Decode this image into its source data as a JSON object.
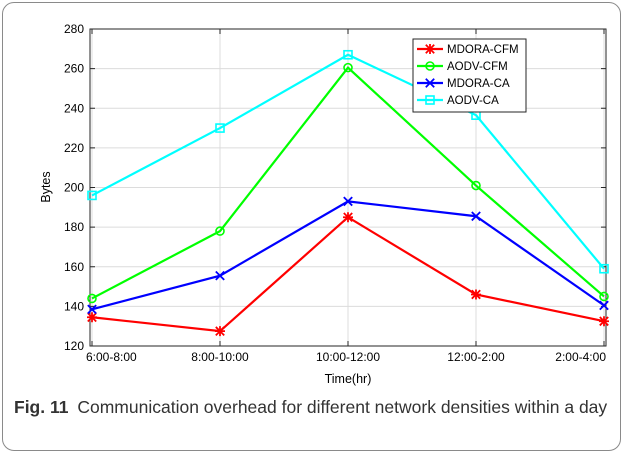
{
  "chart_data": {
    "type": "line",
    "categories": [
      "6:00-8:00",
      "8:00-10:00",
      "10:00-12:00",
      "12:00-2:00",
      "2:00-4:00"
    ],
    "series": [
      {
        "name": "MDORA-CFM",
        "color": "#ff0000",
        "marker": "asterisk",
        "values": [
          134.5,
          127.5,
          185,
          146,
          132.5
        ]
      },
      {
        "name": "AODV-CFM",
        "color": "#00ff00",
        "marker": "circle",
        "values": [
          144,
          178,
          260.5,
          201,
          145
        ]
      },
      {
        "name": "MDORA-CA",
        "color": "#0000ff",
        "marker": "x",
        "values": [
          138.5,
          155.5,
          193,
          185.5,
          140.5
        ]
      },
      {
        "name": "AODV-CA",
        "color": "#00ffff",
        "marker": "square",
        "values": [
          196,
          230,
          267,
          236.5,
          159
        ]
      }
    ],
    "xlabel": "Time(hr)",
    "ylabel": "Bytes",
    "ylim": [
      120,
      280
    ],
    "yticks": [
      120,
      140,
      160,
      180,
      200,
      220,
      240,
      260,
      280
    ],
    "grid": true,
    "legend_position": "top-right"
  },
  "caption": {
    "label": "Fig. 11",
    "text": "Communication overhead for different network densities within a day"
  }
}
